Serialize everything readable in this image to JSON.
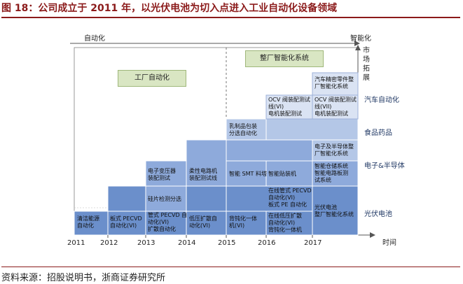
{
  "title": "图 18：公司成立于 2011 年，以光伏电池为切入点进入工业自动化设备领域",
  "source": "资料来源：招股说明书，浙商证券研究所",
  "axis": {
    "top_left": "自动化",
    "top_right": "智能化",
    "right_top_vertical": [
      "市",
      "场",
      "拓",
      "展"
    ],
    "x_label": "时间",
    "years": [
      "2011",
      "2012",
      "2013",
      "2014",
      "2015",
      "2016",
      "2017"
    ]
  },
  "phases": {
    "factory": "工厂自动化",
    "smart": "整厂智能化系统"
  },
  "markets": [
    "汽车自动化",
    "食品药品",
    "电子&半导体",
    "光伏电池"
  ],
  "cells": {
    "c1": [
      "清洁能源",
      "自动化"
    ],
    "c2": [
      "板式 PECVD",
      "自动化(VI)"
    ],
    "c3": [
      "管式 PECVD 自",
      "动化(VI)",
      "扩散自动化"
    ],
    "c4": [
      "硅片检测分选"
    ],
    "c5": [
      "电子变压器",
      "装配测试"
    ],
    "c6": [
      "低压扩散自",
      "动化(VI)"
    ],
    "c7": [
      "柔性电路机",
      "装配测试线"
    ],
    "c8": [
      "背钝化一体",
      "机(VI)"
    ],
    "c9": [
      "智能 SMT 料塔"
    ],
    "c10": [
      "乳制品包装",
      "分选自动化"
    ],
    "c11": [
      "在线管式 PECVD",
      "自动化(VI)",
      "板式 PE 自动化"
    ],
    "c12": [
      "在线低压扩散",
      "自动化(VI)",
      "背钝化一体机"
    ],
    "c13": [
      "智能贴装机"
    ],
    "c14": [
      "OCV 阀装配测试",
      "线(VI)",
      "电机装配测试"
    ],
    "c15": [
      "光伏电池",
      "整厂智能化系统"
    ],
    "c16": [
      "智能仓储系统",
      "智能电路板测",
      "试系统"
    ],
    "c17": [
      "电子及半导体整",
      "厂智能化系统"
    ],
    "c18": [
      "OCV 阀装配测试",
      "线(VII)",
      "电机装配测试"
    ],
    "c19": [
      "汽车精密零件整",
      "厂智能化系统"
    ]
  },
  "colors": {
    "dark": "#6b8fcb",
    "mid": "#8eaadb",
    "light": "#b4c7e7",
    "pale": "#dae3f3",
    "green": "#d9e6c3",
    "title": "#8b1a1a"
  }
}
